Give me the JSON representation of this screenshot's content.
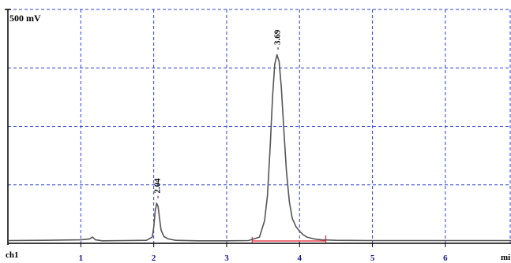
{
  "chart_data": {
    "type": "line",
    "title": "",
    "xlabel": "",
    "ylabel": "",
    "full_scale_label": "500 mV",
    "channel_label": "ch1",
    "x_unit_label": "mi",
    "x_ticks": [
      "1",
      "2",
      "3",
      "4",
      "5",
      "6"
    ],
    "xlim": [
      0,
      6.9
    ],
    "grid": true,
    "peaks": [
      {
        "label": "2.04",
        "retention_time": 2.04
      },
      {
        "label": "3.69",
        "retention_time": 3.69
      }
    ],
    "integration_baseline": {
      "start": 3.35,
      "end": 4.36
    },
    "series": [
      {
        "x": [
          0,
          0.5,
          1.0,
          1.12,
          1.16,
          1.2,
          1.3,
          1.6,
          1.9,
          1.98,
          2.0,
          2.02,
          2.04,
          2.06,
          2.08,
          2.1,
          2.14,
          2.2,
          2.3,
          2.6,
          3.0,
          3.3,
          3.45,
          3.52,
          3.56,
          3.6,
          3.63,
          3.66,
          3.69,
          3.72,
          3.75,
          3.78,
          3.82,
          3.86,
          3.9,
          3.95,
          4.0,
          4.05,
          4.1,
          4.2,
          4.3,
          4.5,
          5.0,
          5.5,
          6.0,
          6.5,
          6.9
        ],
        "y": [
          0.005,
          0.006,
          0.008,
          0.012,
          0.02,
          0.008,
          0.004,
          0.005,
          0.006,
          0.02,
          0.06,
          0.13,
          0.165,
          0.15,
          0.1,
          0.05,
          0.022,
          0.012,
          0.006,
          0.004,
          0.004,
          0.005,
          0.02,
          0.09,
          0.2,
          0.42,
          0.62,
          0.76,
          0.8,
          0.77,
          0.66,
          0.5,
          0.3,
          0.17,
          0.1,
          0.065,
          0.045,
          0.03,
          0.02,
          0.012,
          0.008,
          0.006,
          0.005,
          0.005,
          0.005,
          0.005,
          0.005
        ]
      }
    ],
    "colors": {
      "grid": "#2b3fd6",
      "axis": "#000000",
      "trace": "#555555",
      "baseline": "#e8202a",
      "label": "#1a1a8c"
    }
  }
}
